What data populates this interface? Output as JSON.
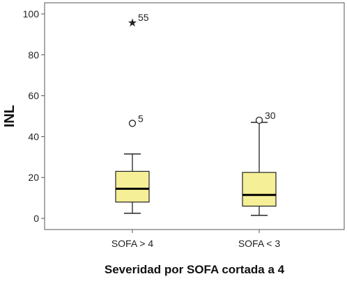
{
  "chart_data": {
    "type": "boxplot",
    "ylabel": "INL",
    "xlabel": "Severidad por SOFA cortada a 4",
    "ylim": [
      0,
      100
    ],
    "yticks": [
      0,
      20,
      40,
      60,
      80,
      100
    ],
    "grid": false,
    "categories": [
      "SOFA > 4",
      "SOFA < 3"
    ],
    "boxes": [
      {
        "category": "SOFA > 4",
        "whisker_low": 2.5,
        "q1": 8,
        "median": 14.5,
        "q3": 23,
        "whisker_high": 31.5,
        "outliers": [
          {
            "value": 46.5,
            "label": "5",
            "marker": "circle"
          },
          {
            "value": 96,
            "label": "55",
            "marker": "star"
          }
        ]
      },
      {
        "category": "SOFA < 3",
        "whisker_low": 1.5,
        "q1": 6,
        "median": 11.5,
        "q3": 22.5,
        "whisker_high": 47,
        "outliers": [
          {
            "value": 48,
            "label": "30",
            "marker": "circle"
          }
        ]
      }
    ],
    "colors": {
      "box_fill": "#f5ef97",
      "box_stroke": "#222222",
      "median": "#000000",
      "plot_background": "#ffffff",
      "frame": "#555555"
    }
  }
}
